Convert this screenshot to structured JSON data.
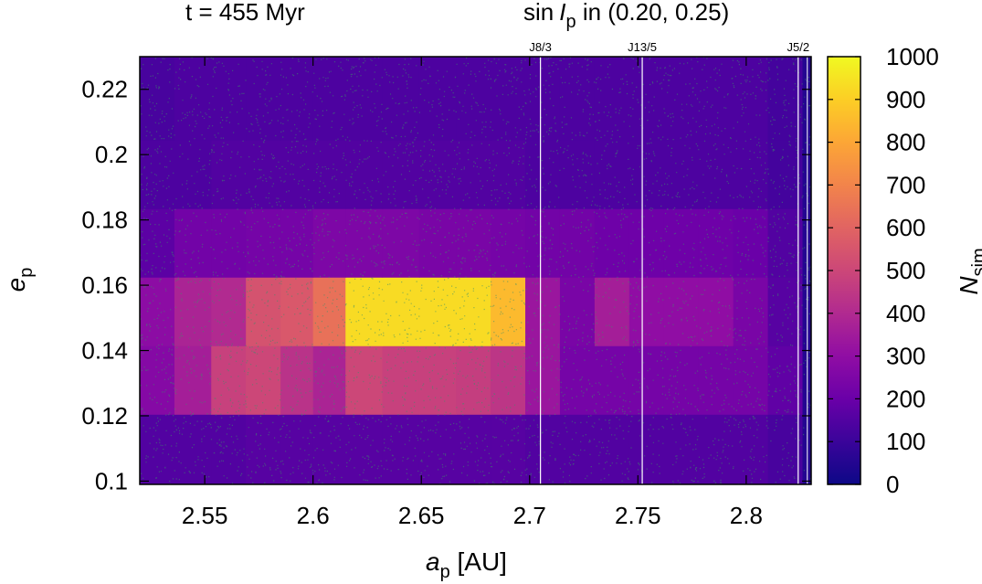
{
  "chart_data": {
    "type": "heatmap",
    "title_left": "t = 455 Myr",
    "title_right": {
      "prefix": "sin",
      "symbol": "I",
      "subscript": "p",
      "suffix": " in (0.20, 0.25)"
    },
    "xlabel": {
      "symbol": "a",
      "subscript": "p",
      "unit": " [AU]"
    },
    "ylabel": {
      "symbol": "e",
      "subscript": "p"
    },
    "colorbar_label": {
      "symbol": "N",
      "subscript": "sim"
    },
    "xlim": [
      2.52,
      2.83
    ],
    "ylim": [
      0.099,
      0.23
    ],
    "x_ticks": [
      "2.55",
      "2.6",
      "2.65",
      "2.7",
      "2.75",
      "2.8"
    ],
    "y_ticks": [
      "0.1",
      "0.12",
      "0.14",
      "0.16",
      "0.18",
      "0.2",
      "0.22"
    ],
    "colorbar_ticks": [
      "0",
      "100",
      "200",
      "300",
      "400",
      "500",
      "600",
      "700",
      "800",
      "900",
      "1000"
    ],
    "colorbar_range": [
      0,
      1000
    ],
    "colormap": [
      "#0d0887",
      "#3a049a",
      "#6a00a8",
      "#900da4",
      "#b12a90",
      "#cc4778",
      "#e16462",
      "#f2844b",
      "#fca636",
      "#fcce25",
      "#f0f921"
    ],
    "resonances": [
      {
        "label": "J8/3",
        "a": 2.705
      },
      {
        "label": "J13/5",
        "a": 2.752
      },
      {
        "label": "J5/2",
        "a": 2.824
      }
    ],
    "x_bins": [
      2.52,
      2.536,
      2.553,
      2.569,
      2.585,
      2.6,
      2.615,
      2.632,
      2.649,
      2.666,
      2.682,
      2.698,
      2.714,
      2.73,
      2.746,
      2.762,
      2.778,
      2.794,
      2.81,
      2.826
    ],
    "y_bins": [
      0.099,
      0.1205,
      0.1415,
      0.1625,
      0.1835,
      0.2045,
      0.23
    ],
    "values": [
      [
        150,
        150,
        150,
        160,
        160,
        160,
        160,
        160,
        160,
        160,
        160,
        150,
        150,
        150,
        150,
        150,
        150,
        150,
        130,
        50
      ],
      [
        270,
        360,
        480,
        500,
        430,
        380,
        500,
        480,
        480,
        470,
        440,
        330,
        230,
        230,
        230,
        230,
        230,
        230,
        180,
        50
      ],
      [
        290,
        380,
        400,
        540,
        560,
        640,
        930,
        930,
        930,
        930,
        850,
        330,
        240,
        360,
        300,
        300,
        300,
        240,
        160,
        50
      ],
      [
        170,
        220,
        220,
        230,
        230,
        250,
        250,
        250,
        240,
        240,
        230,
        220,
        220,
        210,
        210,
        210,
        210,
        200,
        150,
        50
      ],
      [
        140,
        140,
        150,
        150,
        150,
        150,
        150,
        150,
        150,
        150,
        150,
        140,
        140,
        140,
        140,
        140,
        140,
        140,
        120,
        50
      ],
      [
        130,
        140,
        140,
        140,
        140,
        140,
        140,
        140,
        140,
        140,
        140,
        140,
        140,
        140,
        140,
        140,
        140,
        140,
        120,
        50
      ]
    ]
  }
}
